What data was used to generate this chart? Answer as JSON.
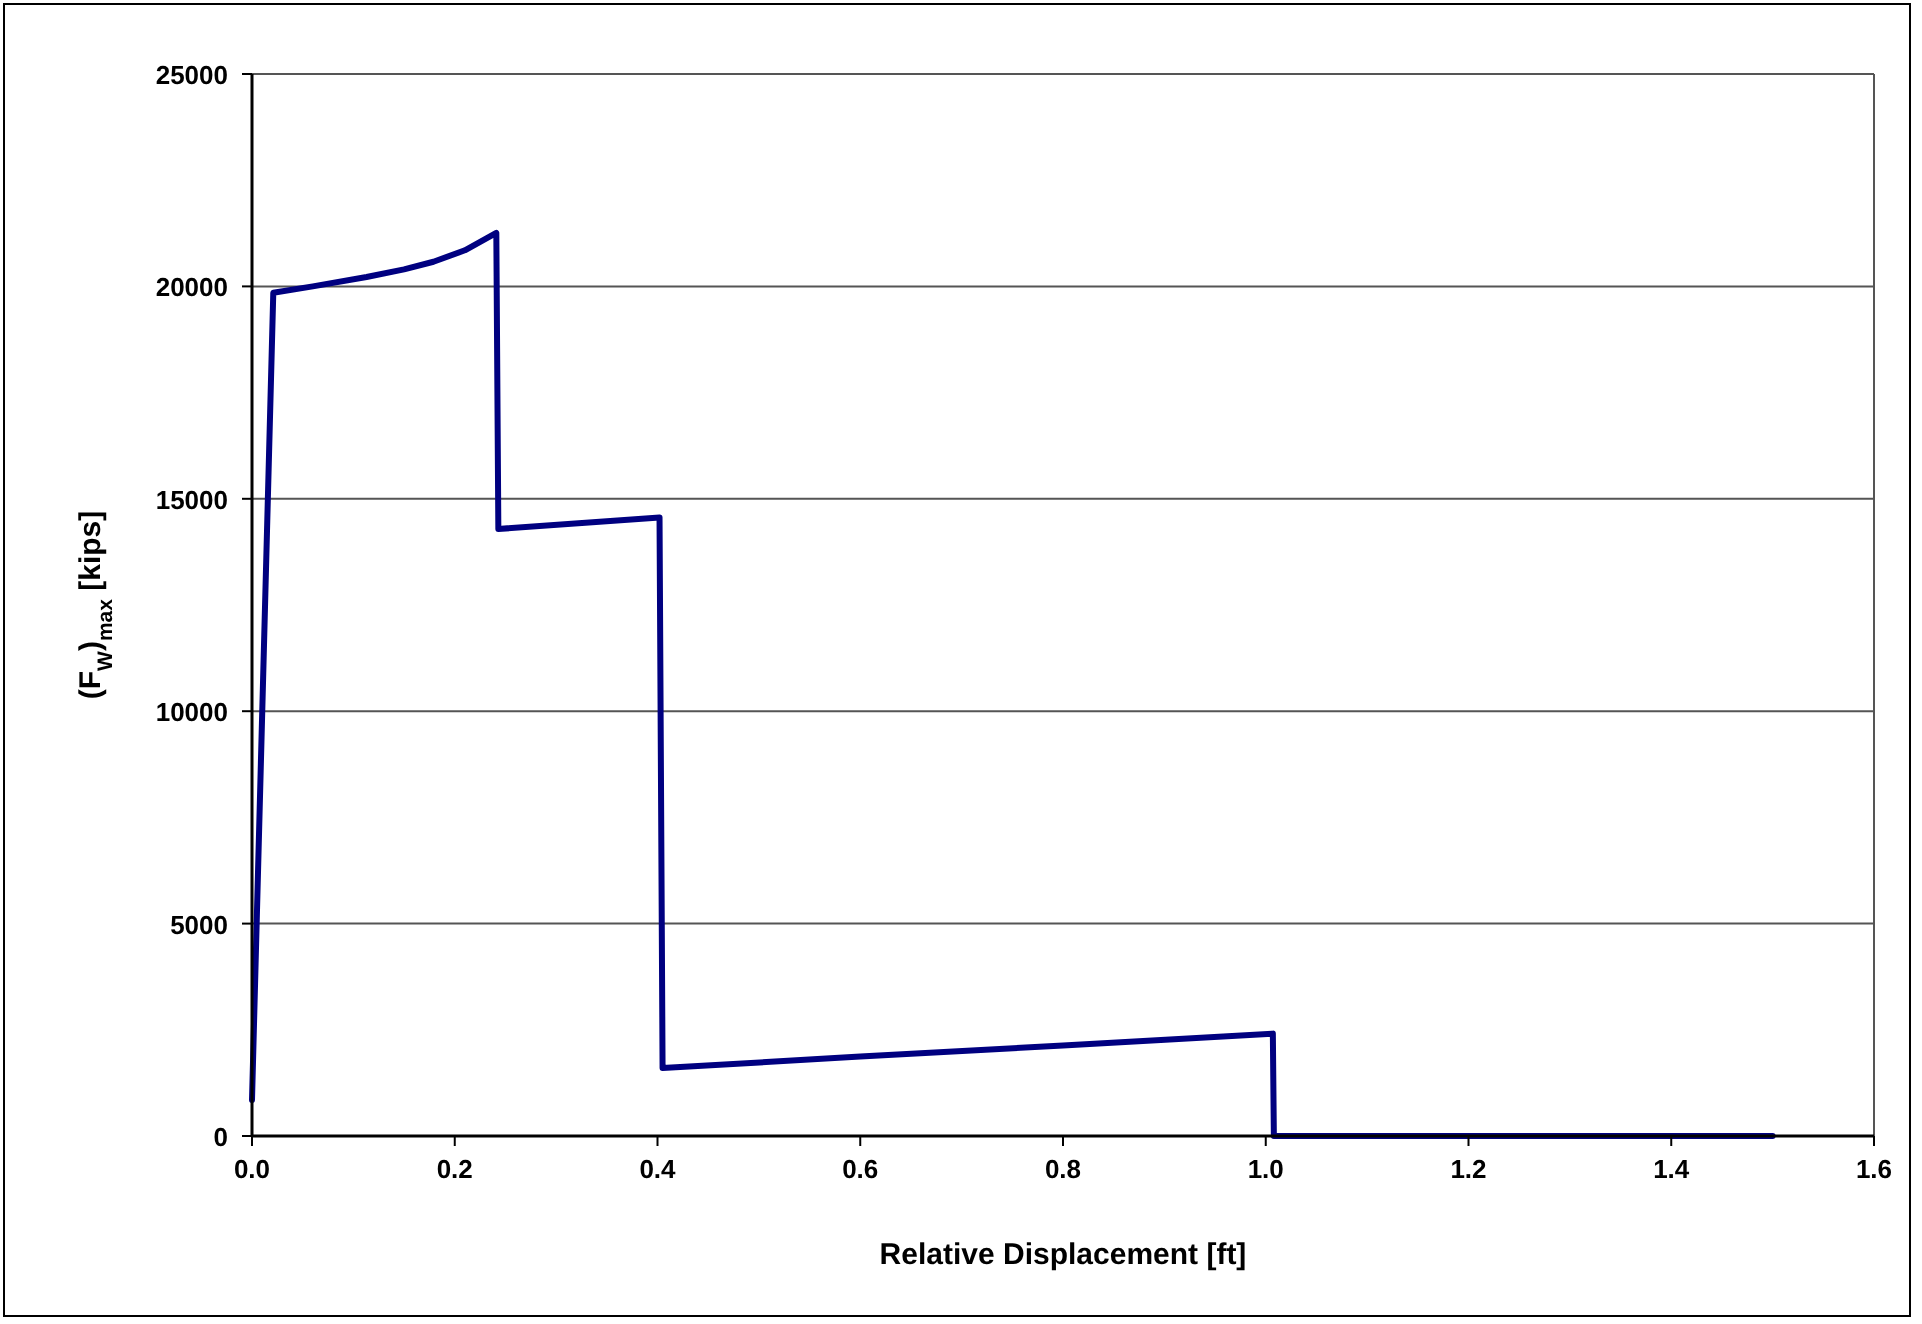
{
  "chart_data": {
    "type": "line",
    "xlabel": "Relative Displacement  [ft]",
    "ylabel": "(F$_{W}$)$_{max}$  [kips]",
    "xlim": [
      0,
      1.6
    ],
    "xticks": [
      {
        "value": 0,
        "label": "0.0"
      },
      0.2,
      0.4,
      0.6,
      0.8,
      {
        "value": 1,
        "label": "1.0"
      },
      1.2,
      1.4,
      1.6
    ],
    "ylim": [
      0,
      25000
    ],
    "yticks": [
      0,
      5000,
      10000,
      15000,
      20000,
      25000
    ],
    "grid": "y",
    "marker": "none",
    "line_style": "solid",
    "series": [
      {
        "color": "#000080",
        "x": [
          0,
          0.021,
          0.06,
          0.113,
          0.15,
          0.179,
          0.21,
          0.241,
          0.243,
          0.402,
          0.405,
          0.6,
          0.8,
          1.007,
          1.008,
          1.5
        ],
        "values": [
          850,
          19850,
          20000,
          20220,
          20400,
          20580,
          20850,
          21260,
          14290,
          14560,
          1600,
          1870,
          2130,
          2410,
          0,
          0
        ]
      }
    ]
  }
}
